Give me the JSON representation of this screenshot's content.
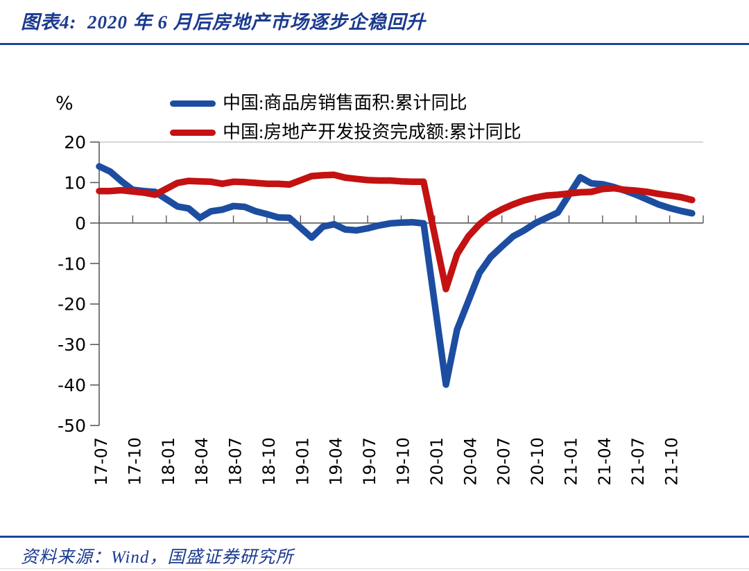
{
  "header": {
    "title": "图表4:  2020 年 6 月后房地产市场逐步企稳回升"
  },
  "footer": {
    "source": "资料来源：Wind，国盛证券研究所"
  },
  "colors": {
    "accent_navy": "#1e429f",
    "title_text": "#1b3a8f",
    "axis_line": "#595959",
    "plot_border": "#ababab",
    "blue_series": "#1c4da0",
    "red_series": "#c41111"
  },
  "chart_data": {
    "type": "line",
    "unit_label": "%",
    "ylim": [
      -50,
      20
    ],
    "y_ticks": [
      20,
      10,
      0,
      -10,
      -20,
      -30,
      -40,
      -50
    ],
    "grid": false,
    "legend_position": "top",
    "x_tick_labels": [
      "17-07",
      "17-10",
      "18-01",
      "18-04",
      "18-07",
      "18-10",
      "19-01",
      "19-04",
      "19-07",
      "19-10",
      "20-01",
      "20-04",
      "20-07",
      "20-10",
      "21-01",
      "21-04",
      "21-07",
      "21-10"
    ],
    "x": [
      "17-07",
      "17-08",
      "17-09",
      "17-10",
      "17-11",
      "17-12",
      "18-01",
      "18-02",
      "18-03",
      "18-04",
      "18-05",
      "18-06",
      "18-07",
      "18-08",
      "18-09",
      "18-10",
      "18-11",
      "18-12",
      "19-01",
      "19-02",
      "19-03",
      "19-04",
      "19-05",
      "19-06",
      "19-07",
      "19-08",
      "19-09",
      "19-10",
      "19-11",
      "19-12",
      "20-01",
      "20-02",
      "20-03",
      "20-04",
      "20-05",
      "20-06",
      "20-07",
      "20-08",
      "20-09",
      "20-10",
      "20-11",
      "20-12",
      "21-01",
      "21-02",
      "21-03",
      "21-04",
      "21-05",
      "21-06",
      "21-07",
      "21-08",
      "21-09",
      "21-10",
      "21-11",
      "21-12"
    ],
    "series": [
      {
        "name": "中国:商品房销售面积:累计同比",
        "color": "#1c4da0",
        "values": [
          14.0,
          12.7,
          10.3,
          8.2,
          7.9,
          7.7,
          null,
          4.1,
          3.6,
          1.3,
          2.9,
          3.3,
          4.2,
          4.0,
          2.9,
          2.2,
          1.4,
          1.3,
          null,
          -3.6,
          -0.9,
          -0.3,
          -1.6,
          -1.8,
          -1.3,
          -0.6,
          -0.1,
          0.1,
          0.2,
          -0.1,
          null,
          -39.9,
          -26.3,
          -19.3,
          -12.3,
          -8.4,
          -5.8,
          -3.3,
          -1.8,
          0.0,
          1.3,
          2.6,
          null,
          11.3,
          9.8,
          9.6,
          8.9,
          8.0,
          7.0,
          5.8,
          4.6,
          3.7,
          3.0,
          2.4
        ]
      },
      {
        "name": "中国:房地产开发投资完成额:累计同比",
        "color": "#c41111",
        "values": [
          7.9,
          7.9,
          8.1,
          7.8,
          7.5,
          7.0,
          null,
          9.9,
          10.4,
          10.3,
          10.2,
          9.7,
          10.2,
          10.1,
          9.9,
          9.7,
          9.7,
          9.5,
          null,
          11.6,
          11.8,
          11.9,
          11.2,
          10.9,
          10.6,
          10.5,
          10.5,
          10.3,
          10.2,
          10.2,
          null,
          -16.3,
          -7.7,
          -3.3,
          -0.3,
          1.9,
          3.4,
          4.6,
          5.6,
          6.3,
          6.8,
          7.0,
          null,
          7.6,
          7.7,
          8.4,
          8.6,
          8.2,
          8.0,
          7.7,
          7.2,
          6.8,
          6.4,
          5.7
        ]
      }
    ]
  }
}
